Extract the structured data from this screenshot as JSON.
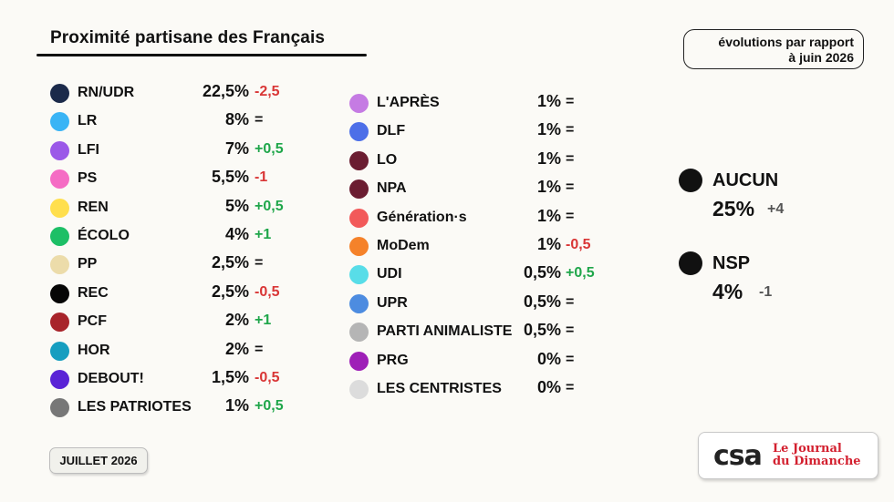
{
  "title": "Proximité partisane des Français",
  "note": [
    "évolutions par rapport",
    "à juin 2026"
  ],
  "date_label": "JUILLET 2026",
  "logo": {
    "csa": "csa",
    "jdd": [
      "Le Journal",
      "du Dimanche"
    ]
  },
  "chart_data": {
    "type": "table",
    "title": "Proximité partisane des Français",
    "unit": "%",
    "columns": [
      [
        {
          "name": "RN/UDR",
          "value": "22,5%",
          "change": "-2,5",
          "dir": "down",
          "color": "#1b2a4a"
        },
        {
          "name": "LR",
          "value": "8%",
          "change": "=",
          "dir": "eq",
          "color": "#3ab4f5"
        },
        {
          "name": "LFI",
          "value": "7%",
          "change": "+0,5",
          "dir": "up",
          "color": "#9b59e8"
        },
        {
          "name": "PS",
          "value": "5,5%",
          "change": "-1",
          "dir": "down",
          "color": "#f56cc4"
        },
        {
          "name": "REN",
          "value": "5%",
          "change": "+0,5",
          "dir": "up",
          "color": "#ffdf4d"
        },
        {
          "name": "ÉCOLO",
          "value": "4%",
          "change": "+1",
          "dir": "up",
          "color": "#1dbf66"
        },
        {
          "name": "PP",
          "value": "2,5%",
          "change": "=",
          "dir": "eq",
          "color": "#ecdcaa"
        },
        {
          "name": "REC",
          "value": "2,5%",
          "change": "-0,5",
          "dir": "down",
          "color": "#060606"
        },
        {
          "name": "PCF",
          "value": "2%",
          "change": "+1",
          "dir": "up",
          "color": "#a8242a"
        },
        {
          "name": "HOR",
          "value": "2%",
          "change": "=",
          "dir": "eq",
          "color": "#169ec0"
        },
        {
          "name": "DEBOUT!",
          "value": "1,5%",
          "change": "-0,5",
          "dir": "down",
          "color": "#5a23d6"
        },
        {
          "name": "LES PATRIOTES",
          "value": "1%",
          "change": "+0,5",
          "dir": "up",
          "color": "#777777"
        }
      ],
      [
        {
          "name": "L'APRÈS",
          "value": "1%",
          "change": "=",
          "dir": "eq",
          "color": "#c57be3"
        },
        {
          "name": "DLF",
          "value": "1%",
          "change": "=",
          "dir": "eq",
          "color": "#4d6fe8"
        },
        {
          "name": "LO",
          "value": "1%",
          "change": "=",
          "dir": "eq",
          "color": "#6b1d31"
        },
        {
          "name": "NPA",
          "value": "1%",
          "change": "=",
          "dir": "eq",
          "color": "#6b1d31"
        },
        {
          "name": "Génération·s",
          "value": "1%",
          "change": "=",
          "dir": "eq",
          "color": "#f25a5a"
        },
        {
          "name": "MoDem",
          "value": "1%",
          "change": "-0,5",
          "dir": "down",
          "color": "#f5822a"
        },
        {
          "name": "UDI",
          "value": "0,5%",
          "change": "+0,5",
          "dir": "up",
          "color": "#58dde8"
        },
        {
          "name": "UPR",
          "value": "0,5%",
          "change": "=",
          "dir": "eq",
          "color": "#4d8ce0"
        },
        {
          "name": "PARTI ANIMALISTE",
          "value": "0,5%",
          "change": "=",
          "dir": "eq",
          "color": "#b5b5b5"
        },
        {
          "name": "PRG",
          "value": "0%",
          "change": "=",
          "dir": "eq",
          "color": "#9e1fb7"
        },
        {
          "name": "LES CENTRISTES",
          "value": "0%",
          "change": "=",
          "dir": "eq",
          "color": "#dcdcdc"
        }
      ]
    ],
    "others": [
      {
        "name": "AUCUN",
        "value": "25%",
        "change": "+4"
      },
      {
        "name": "NSP",
        "value": "4%",
        "change": "-1"
      }
    ]
  }
}
